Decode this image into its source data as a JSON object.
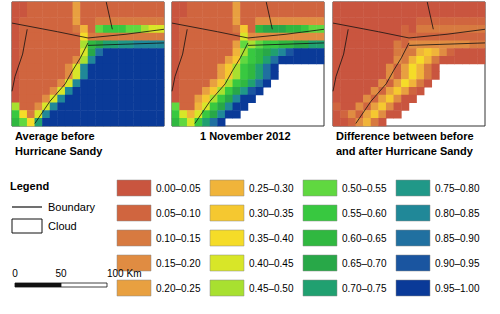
{
  "chart_data": [
    {
      "type": "heatmap",
      "title": "Average before Hurricane Sandy",
      "tick_labels": false,
      "cells": [
        [
          0.03,
          0.03,
          0.08,
          0.08,
          0.08,
          0.08,
          0.08,
          0.08,
          0.22,
          0.08,
          0.08,
          0.08,
          0.08,
          0.08,
          0.08,
          0.08,
          0.08,
          0.08,
          0.08,
          0.08
        ],
        [
          0.03,
          0.03,
          0.08,
          0.08,
          0.08,
          0.08,
          0.08,
          0.08,
          0.22,
          0.08,
          0.08,
          0.08,
          0.08,
          0.08,
          0.08,
          0.08,
          0.08,
          0.08,
          0.08,
          0.08
        ],
        [
          0.03,
          0.08,
          0.08,
          0.08,
          0.08,
          0.08,
          0.08,
          0.08,
          0.22,
          0.08,
          0.08,
          0.12,
          0.12,
          0.12,
          0.12,
          0.12,
          0.12,
          0.12,
          0.12,
          0.12
        ],
        [
          0.03,
          0.08,
          0.08,
          0.08,
          0.08,
          0.08,
          0.08,
          0.08,
          0.12,
          0.28,
          0.08,
          0.52,
          0.57,
          0.57,
          0.57,
          0.52,
          0.52,
          0.47,
          0.42,
          0.42
        ],
        [
          0.03,
          0.08,
          0.08,
          0.08,
          0.08,
          0.08,
          0.08,
          0.08,
          0.08,
          0.38,
          0.12,
          0.12,
          0.12,
          0.12,
          0.12,
          0.12,
          0.12,
          0.12,
          0.12,
          0.12
        ],
        [
          0.03,
          0.08,
          0.08,
          0.08,
          0.08,
          0.08,
          0.08,
          0.08,
          0.08,
          0.47,
          0.62,
          0.67,
          0.72,
          0.72,
          0.77,
          0.77,
          0.82,
          0.82,
          0.82,
          0.82
        ],
        [
          0.03,
          0.08,
          0.08,
          0.08,
          0.08,
          0.08,
          0.08,
          0.08,
          0.08,
          0.42,
          0.67,
          0.87,
          0.97,
          0.97,
          0.97,
          0.97,
          0.97,
          0.97,
          0.97,
          0.97
        ],
        [
          0.03,
          0.08,
          0.08,
          0.08,
          0.08,
          0.08,
          0.08,
          0.08,
          0.17,
          0.47,
          0.82,
          0.97,
          0.97,
          0.97,
          0.97,
          0.97,
          0.97,
          0.97,
          0.97,
          0.97
        ],
        [
          0.03,
          0.08,
          0.08,
          0.08,
          0.08,
          0.08,
          0.08,
          0.17,
          0.42,
          0.8,
          0.97,
          0.97,
          0.97,
          0.97,
          0.97,
          0.97,
          0.97,
          0.97,
          0.97,
          0.97
        ],
        [
          0.03,
          0.08,
          0.08,
          0.08,
          0.08,
          0.08,
          0.08,
          0.17,
          0.42,
          0.8,
          0.97,
          0.97,
          0.97,
          0.97,
          0.97,
          0.97,
          0.97,
          0.97,
          0.97,
          0.97
        ],
        [
          0.03,
          0.08,
          0.08,
          0.08,
          0.08,
          0.08,
          0.17,
          0.42,
          0.8,
          0.97,
          0.97,
          0.97,
          0.97,
          0.97,
          0.97,
          0.97,
          0.97,
          0.97,
          0.97,
          0.97
        ],
        [
          0.03,
          0.08,
          0.08,
          0.08,
          0.08,
          0.17,
          0.42,
          0.8,
          0.97,
          0.97,
          0.97,
          0.97,
          0.97,
          0.97,
          0.97,
          0.97,
          0.97,
          0.97,
          0.97,
          0.97
        ],
        [
          0.03,
          0.08,
          0.08,
          0.08,
          0.17,
          0.42,
          0.8,
          0.97,
          0.97,
          0.97,
          0.97,
          0.97,
          0.97,
          0.97,
          0.97,
          0.97,
          0.97,
          0.97,
          0.97,
          0.97
        ],
        [
          0.47,
          0.08,
          0.08,
          0.17,
          0.42,
          0.8,
          0.97,
          0.97,
          0.97,
          0.97,
          0.97,
          0.97,
          0.97,
          0.97,
          0.97,
          0.97,
          0.97,
          0.97,
          0.97,
          0.97
        ],
        [
          0.57,
          0.37,
          0.12,
          0.42,
          0.8,
          0.97,
          0.97,
          0.97,
          0.97,
          0.97,
          0.97,
          0.97,
          0.97,
          0.97,
          0.97,
          0.97,
          0.97,
          0.97,
          0.97,
          0.97
        ],
        [
          0.62,
          0.52,
          0.37,
          0.72,
          0.97,
          0.97,
          0.97,
          0.97,
          0.97,
          0.97,
          0.97,
          0.97,
          0.97,
          0.97,
          0.97,
          0.97,
          0.97,
          0.97,
          0.97,
          0.97
        ]
      ]
    },
    {
      "type": "heatmap",
      "title": "1 November 2012",
      "tick_labels": false,
      "cells": [
        [
          0.03,
          0.03,
          0.08,
          0.08,
          0.08,
          0.08,
          0.08,
          0.08,
          0.22,
          0.08,
          0.08,
          0.08,
          0.08,
          0.08,
          0.08,
          0.08,
          0.08,
          0.08,
          0.08,
          0.08
        ],
        [
          0.03,
          0.03,
          0.08,
          0.08,
          0.08,
          0.08,
          0.08,
          0.08,
          0.22,
          0.08,
          0.08,
          0.08,
          0.08,
          0.08,
          0.08,
          0.08,
          0.08,
          0.08,
          0.08,
          0.08
        ],
        [
          0.03,
          0.08,
          0.08,
          0.08,
          0.08,
          0.08,
          0.08,
          0.08,
          0.22,
          0.08,
          0.08,
          0.17,
          0.17,
          0.17,
          0.17,
          0.17,
          0.17,
          0.17,
          0.17,
          0.17
        ],
        [
          0.03,
          0.08,
          0.08,
          0.08,
          0.08,
          0.08,
          0.08,
          0.08,
          0.12,
          0.32,
          0.08,
          0.62,
          0.67,
          0.67,
          0.67,
          0.62,
          0.62,
          0.57,
          0.52,
          0.52
        ],
        [
          0.03,
          0.08,
          0.08,
          0.08,
          0.08,
          0.08,
          0.08,
          0.08,
          0.08,
          0.42,
          0.17,
          0.17,
          0.17,
          0.17,
          0.17,
          0.17,
          0.17,
          0.17,
          0.17,
          0.17
        ],
        [
          0.03,
          0.08,
          0.08,
          0.08,
          0.08,
          0.08,
          0.08,
          0.08,
          0.22,
          0.52,
          0.47,
          0.52,
          0.57,
          0.57,
          0.62,
          0.62,
          0.67,
          0.67,
          0.72,
          0.72
        ],
        [
          0.03,
          0.08,
          0.08,
          0.08,
          0.08,
          0.08,
          0.08,
          0.08,
          0.27,
          0.47,
          0.57,
          0.62,
          0.67,
          0.72,
          0.82,
          0.92,
          0.97,
          0.97,
          0.97,
          0.97
        ],
        [
          0.03,
          0.08,
          0.08,
          0.08,
          0.08,
          0.08,
          0.08,
          0.22,
          0.32,
          0.52,
          0.57,
          0.62,
          0.72,
          0.87,
          0.97,
          0.97,
          0.97,
          0.97,
          0.97,
          0.97
        ],
        [
          0.03,
          0.08,
          0.08,
          0.08,
          0.08,
          0.08,
          0.22,
          0.32,
          0.47,
          0.57,
          0.62,
          0.72,
          0.87,
          0.97,
          null,
          null,
          null,
          null,
          null,
          null
        ],
        [
          0.03,
          0.08,
          0.08,
          0.08,
          0.08,
          0.08,
          0.22,
          0.32,
          0.47,
          0.57,
          0.62,
          0.72,
          0.87,
          0.97,
          null,
          null,
          null,
          null,
          null,
          null
        ],
        [
          0.03,
          0.08,
          0.08,
          0.08,
          0.08,
          0.22,
          0.32,
          0.47,
          0.57,
          0.62,
          0.72,
          0.87,
          0.97,
          null,
          null,
          null,
          null,
          null,
          null,
          null
        ],
        [
          0.03,
          0.08,
          0.08,
          0.08,
          0.22,
          0.32,
          0.47,
          0.57,
          0.67,
          0.77,
          0.92,
          0.97,
          null,
          null,
          null,
          null,
          null,
          null,
          null,
          null
        ],
        [
          0.03,
          0.08,
          0.08,
          0.22,
          0.32,
          0.47,
          0.57,
          0.67,
          0.82,
          0.97,
          0.97,
          null,
          null,
          null,
          null,
          null,
          null,
          null,
          null,
          null
        ],
        [
          0.52,
          0.08,
          0.08,
          0.27,
          0.42,
          0.57,
          0.67,
          0.82,
          0.97,
          0.97,
          null,
          null,
          null,
          null,
          null,
          null,
          null,
          null,
          null,
          null
        ],
        [
          0.57,
          0.42,
          0.27,
          0.42,
          0.57,
          0.67,
          0.82,
          0.97,
          0.97,
          null,
          null,
          null,
          null,
          null,
          null,
          null,
          null,
          null,
          null,
          null
        ],
        [
          0.62,
          0.52,
          0.42,
          0.57,
          0.72,
          0.87,
          0.97,
          null,
          null,
          null,
          null,
          null,
          null,
          null,
          null,
          null,
          null,
          null,
          null,
          null
        ]
      ]
    },
    {
      "type": "heatmap",
      "title": "Difference between before and after Hurricane Sandy",
      "tick_labels": false,
      "cells": [
        [
          0.03,
          0.03,
          0.03,
          0.03,
          0.03,
          0.03,
          0.03,
          0.03,
          0.03,
          0.03,
          0.03,
          0.03,
          0.03,
          0.03,
          0.03,
          0.03,
          0.03,
          0.03,
          0.03,
          0.03
        ],
        [
          0.03,
          0.03,
          0.03,
          0.03,
          0.03,
          0.03,
          0.03,
          0.03,
          0.03,
          0.03,
          0.03,
          0.03,
          0.03,
          0.03,
          0.03,
          0.03,
          0.03,
          0.03,
          0.03,
          0.03
        ],
        [
          0.03,
          0.03,
          0.03,
          0.03,
          0.03,
          0.03,
          0.03,
          0.03,
          0.03,
          0.03,
          0.03,
          0.08,
          0.08,
          0.08,
          0.08,
          0.08,
          0.08,
          0.08,
          0.08,
          0.08
        ],
        [
          0.03,
          0.03,
          0.03,
          0.03,
          0.03,
          0.03,
          0.03,
          0.03,
          0.03,
          0.08,
          0.03,
          0.12,
          0.12,
          0.12,
          0.12,
          0.12,
          0.12,
          0.12,
          0.12,
          0.12
        ],
        [
          0.03,
          0.03,
          0.03,
          0.03,
          0.03,
          0.03,
          0.03,
          0.03,
          0.03,
          0.08,
          0.08,
          0.08,
          0.08,
          0.08,
          0.08,
          0.08,
          0.08,
          0.08,
          0.08,
          0.08
        ],
        [
          0.03,
          0.03,
          0.03,
          0.03,
          0.03,
          0.03,
          0.03,
          0.03,
          0.12,
          0.08,
          0.17,
          0.17,
          0.17,
          0.17,
          0.17,
          0.17,
          0.17,
          0.17,
          0.12,
          0.12
        ],
        [
          0.03,
          0.03,
          0.03,
          0.03,
          0.03,
          0.03,
          0.03,
          0.03,
          0.12,
          0.12,
          0.12,
          0.27,
          0.32,
          0.27,
          0.17,
          0.07,
          0.03,
          0.03,
          0.03,
          0.03
        ],
        [
          0.03,
          0.03,
          0.03,
          0.03,
          0.03,
          0.03,
          0.03,
          0.03,
          0.17,
          0.12,
          0.27,
          0.37,
          0.27,
          0.12,
          0.03,
          0.03,
          0.03,
          0.03,
          0.03,
          0.03
        ],
        [
          0.03,
          0.03,
          0.03,
          0.03,
          0.03,
          0.03,
          0.03,
          0.17,
          0.07,
          0.22,
          0.37,
          0.27,
          0.12,
          0.03,
          null,
          null,
          null,
          null,
          null,
          null
        ],
        [
          0.03,
          0.03,
          0.03,
          0.03,
          0.03,
          0.03,
          0.03,
          0.17,
          0.07,
          0.22,
          0.37,
          0.27,
          0.12,
          0.03,
          null,
          null,
          null,
          null,
          null,
          null
        ],
        [
          0.03,
          0.03,
          0.03,
          0.03,
          0.03,
          0.03,
          0.17,
          0.07,
          0.22,
          0.37,
          0.27,
          0.12,
          0.03,
          null,
          null,
          null,
          null,
          null,
          null,
          null
        ],
        [
          0.03,
          0.03,
          0.03,
          0.03,
          0.03,
          0.17,
          0.07,
          0.22,
          0.32,
          0.22,
          0.07,
          0.03,
          null,
          null,
          null,
          null,
          null,
          null,
          null,
          null
        ],
        [
          0.03,
          0.03,
          0.03,
          0.03,
          0.17,
          0.07,
          0.22,
          0.32,
          0.17,
          0.03,
          0.03,
          null,
          null,
          null,
          null,
          null,
          null,
          null,
          null,
          null
        ],
        [
          0.07,
          0.03,
          0.03,
          0.17,
          0.07,
          0.22,
          0.32,
          0.17,
          0.03,
          0.03,
          null,
          null,
          null,
          null,
          null,
          null,
          null,
          null,
          null,
          null
        ],
        [
          0.03,
          0.07,
          0.17,
          0.07,
          0.22,
          0.32,
          0.17,
          0.03,
          0.03,
          null,
          null,
          null,
          null,
          null,
          null,
          null,
          null,
          null,
          null,
          null
        ],
        [
          0.03,
          0.03,
          0.07,
          0.17,
          0.27,
          0.12,
          0.03,
          null,
          null,
          null,
          null,
          null,
          null,
          null,
          null,
          null,
          null,
          null,
          null,
          null
        ]
      ]
    }
  ],
  "legend": {
    "title": "Legend",
    "boundary": "Boundary",
    "cloud": "Cloud",
    "classes": [
      {
        "min": 0.0,
        "max": 0.05,
        "label": "0.00–0.05",
        "color": "#c9553f"
      },
      {
        "min": 0.05,
        "max": 0.1,
        "label": "0.05–0.10",
        "color": "#d0653f"
      },
      {
        "min": 0.1,
        "max": 0.15,
        "label": "0.10–0.15",
        "color": "#d77a40"
      },
      {
        "min": 0.15,
        "max": 0.2,
        "label": "0.15–0.20",
        "color": "#e08c42"
      },
      {
        "min": 0.2,
        "max": 0.25,
        "label": "0.20–0.25",
        "color": "#e8a040"
      },
      {
        "min": 0.25,
        "max": 0.3,
        "label": "0.25–0.30",
        "color": "#f0b43a"
      },
      {
        "min": 0.3,
        "max": 0.35,
        "label": "0.30–0.35",
        "color": "#f5c830"
      },
      {
        "min": 0.35,
        "max": 0.4,
        "label": "0.35–0.40",
        "color": "#f5dc28"
      },
      {
        "min": 0.4,
        "max": 0.45,
        "label": "0.40–0.45",
        "color": "#d8e628"
      },
      {
        "min": 0.45,
        "max": 0.5,
        "label": "0.45–0.50",
        "color": "#a8e030"
      },
      {
        "min": 0.5,
        "max": 0.55,
        "label": "0.50–0.55",
        "color": "#60d840"
      },
      {
        "min": 0.55,
        "max": 0.6,
        "label": "0.55–0.60",
        "color": "#38c840"
      },
      {
        "min": 0.6,
        "max": 0.65,
        "label": "0.60–0.65",
        "color": "#30b840"
      },
      {
        "min": 0.65,
        "max": 0.7,
        "label": "0.65–0.70",
        "color": "#28a848"
      },
      {
        "min": 0.7,
        "max": 0.75,
        "label": "0.70–0.75",
        "color": "#20a070"
      },
      {
        "min": 0.75,
        "max": 0.8,
        "label": "0.75–0.80",
        "color": "#209888"
      },
      {
        "min": 0.8,
        "max": 0.85,
        "label": "0.80–0.85",
        "color": "#208898"
      },
      {
        "min": 0.85,
        "max": 0.9,
        "label": "0.85–0.90",
        "color": "#2070a0"
      },
      {
        "min": 0.9,
        "max": 0.95,
        "label": "0.90–0.95",
        "color": "#1a55a0"
      },
      {
        "min": 0.95,
        "max": 1.0,
        "label": "0.95–1.00",
        "color": "#0a3a98"
      }
    ]
  },
  "scale_bar": {
    "ticks": [
      0,
      50,
      100
    ],
    "unit": "Km"
  }
}
